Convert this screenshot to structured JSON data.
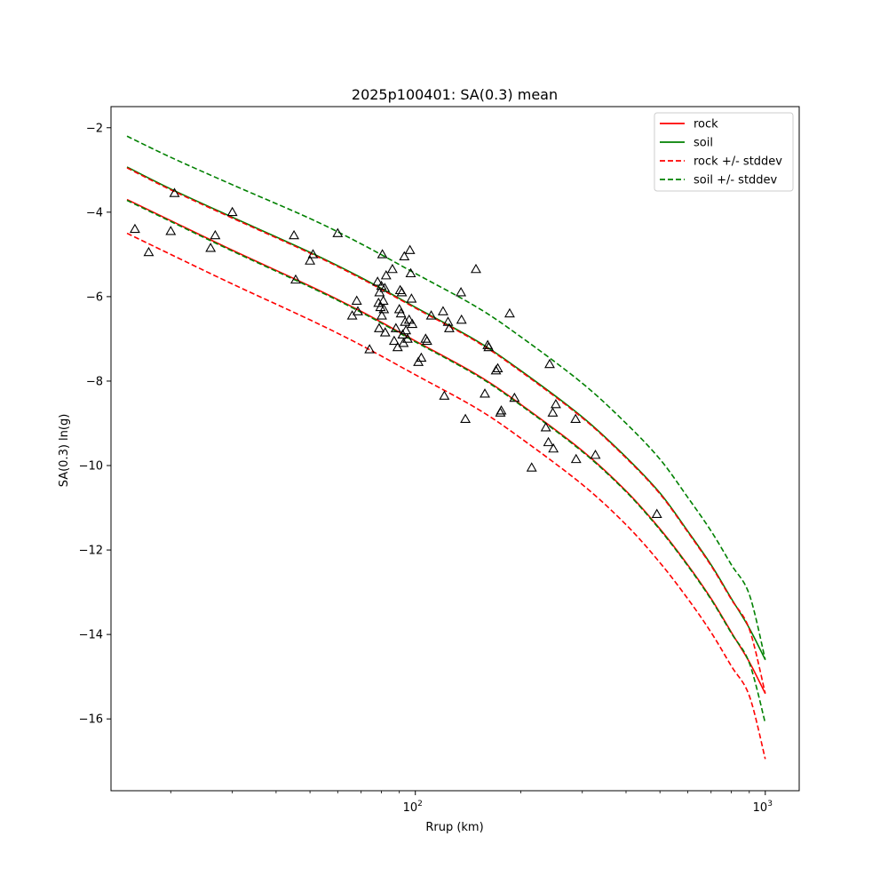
{
  "chart_data": {
    "type": "line",
    "title": "2025p100401: SA(0.3) mean",
    "xlabel": "Rrup (km)",
    "ylabel": "SA(0.3) ln(g)",
    "xscale": "log",
    "xlim": [
      13.5,
      1250
    ],
    "ylim": [
      -17.7,
      -1.5
    ],
    "xticks": [
      {
        "value": 100,
        "base": "10",
        "exp": "2"
      },
      {
        "value": 1000,
        "base": "10",
        "exp": "3"
      }
    ],
    "yticks": [
      -2,
      -4,
      -6,
      -8,
      -10,
      -12,
      -14,
      -16
    ],
    "ytick_labels": [
      "−2",
      "−4",
      "−6",
      "−8",
      "−10",
      "−12",
      "−14",
      "−16"
    ],
    "grid": false,
    "legend_position": "top-right",
    "legend": [
      {
        "label": "rock",
        "color": "#ff0000",
        "style": "solid"
      },
      {
        "label": "soil",
        "color": "#008000",
        "style": "solid"
      },
      {
        "label": "rock +/- stddev",
        "color": "#ff0000",
        "style": "dashed"
      },
      {
        "label": "soil +/- stddev",
        "color": "#008000",
        "style": "dashed"
      }
    ],
    "x": [
      15,
      20,
      30,
      50,
      70,
      100,
      150,
      200,
      300,
      400,
      500,
      600,
      700,
      800,
      900,
      1000
    ],
    "series": [
      {
        "name": "rock",
        "color": "#ff0000",
        "style": "solid",
        "values": [
          -3.7,
          -4.2,
          -4.9,
          -5.75,
          -6.35,
          -7.05,
          -7.85,
          -8.55,
          -9.65,
          -10.6,
          -11.5,
          -12.35,
          -13.15,
          -13.95,
          -14.65,
          -15.4
        ]
      },
      {
        "name": "soil",
        "color": "#008000",
        "style": "solid",
        "values": [
          -2.93,
          -3.45,
          -4.12,
          -4.95,
          -5.55,
          -6.25,
          -7.05,
          -7.75,
          -8.85,
          -9.8,
          -10.65,
          -11.55,
          -12.35,
          -13.15,
          -13.85,
          -14.6
        ]
      },
      {
        "name": "rock - stddev",
        "color": "#ff0000",
        "style": "dashed",
        "values": [
          -4.5,
          -5.0,
          -5.7,
          -6.55,
          -7.15,
          -7.85,
          -8.65,
          -9.35,
          -10.45,
          -11.4,
          -12.3,
          -13.15,
          -13.95,
          -14.75,
          -15.45,
          -16.95
        ]
      },
      {
        "name": "rock + stddev",
        "color": "#ff0000",
        "style": "dashed",
        "values": [
          -2.95,
          -3.47,
          -4.14,
          -4.97,
          -5.57,
          -6.27,
          -7.07,
          -7.77,
          -8.87,
          -9.82,
          -10.67,
          -11.57,
          -12.37,
          -13.17,
          -13.87,
          -15.4
        ]
      },
      {
        "name": "soil - stddev",
        "color": "#008000",
        "style": "dashed",
        "values": [
          -3.72,
          -4.22,
          -4.92,
          -5.77,
          -6.37,
          -7.07,
          -7.87,
          -8.57,
          -9.67,
          -10.62,
          -11.52,
          -12.37,
          -13.17,
          -13.97,
          -14.67,
          -16.1
        ]
      },
      {
        "name": "soil + stddev",
        "color": "#008000",
        "style": "dashed",
        "values": [
          -2.2,
          -2.7,
          -3.35,
          -4.15,
          -4.75,
          -5.45,
          -6.25,
          -6.95,
          -8.05,
          -9.0,
          -9.85,
          -10.75,
          -11.55,
          -12.35,
          -13.05,
          -14.6
        ]
      }
    ],
    "observations": {
      "marker": "triangle",
      "points": [
        [
          15.8,
          -4.4
        ],
        [
          17.3,
          -4.95
        ],
        [
          20,
          -4.45
        ],
        [
          20.5,
          -3.55
        ],
        [
          26,
          -4.85
        ],
        [
          26.8,
          -4.55
        ],
        [
          30,
          -4.0
        ],
        [
          45,
          -4.55
        ],
        [
          45.5,
          -5.6
        ],
        [
          50,
          -5.15
        ],
        [
          51,
          -5.0
        ],
        [
          60,
          -4.5
        ],
        [
          66,
          -6.45
        ],
        [
          68,
          -6.1
        ],
        [
          68.5,
          -6.35
        ],
        [
          74,
          -7.25
        ],
        [
          78,
          -5.65
        ],
        [
          78.5,
          -6.15
        ],
        [
          78.8,
          -6.75
        ],
        [
          79,
          -5.9
        ],
        [
          79.5,
          -6.25
        ],
        [
          80,
          -5.75
        ],
        [
          80.2,
          -6.45
        ],
        [
          80.5,
          -5.0
        ],
        [
          81,
          -6.1
        ],
        [
          81.3,
          -6.3
        ],
        [
          81.8,
          -5.8
        ],
        [
          82,
          -6.85
        ],
        [
          82.5,
          -5.5
        ],
        [
          86,
          -5.35
        ],
        [
          87,
          -7.05
        ],
        [
          88,
          -6.75
        ],
        [
          89,
          -7.2
        ],
        [
          90,
          -6.3
        ],
        [
          90.5,
          -5.85
        ],
        [
          91,
          -6.4
        ],
        [
          91.5,
          -5.9
        ],
        [
          92,
          -6.9
        ],
        [
          92.5,
          -7.1
        ],
        [
          93,
          -5.05
        ],
        [
          93.5,
          -6.6
        ],
        [
          94,
          -6.8
        ],
        [
          95,
          -7.0
        ],
        [
          96,
          -6.55
        ],
        [
          96.5,
          -4.9
        ],
        [
          97,
          -5.45
        ],
        [
          97.5,
          -6.05
        ],
        [
          98,
          -6.65
        ],
        [
          102,
          -7.55
        ],
        [
          104,
          -7.45
        ],
        [
          107,
          -7.0
        ],
        [
          108,
          -7.05
        ],
        [
          111,
          -6.45
        ],
        [
          120,
          -6.35
        ],
        [
          121,
          -8.35
        ],
        [
          124,
          -6.6
        ],
        [
          125,
          -6.75
        ],
        [
          135,
          -5.9
        ],
        [
          135.5,
          -6.55
        ],
        [
          139,
          -8.9
        ],
        [
          149,
          -5.35
        ],
        [
          158,
          -8.3
        ],
        [
          161,
          -7.15
        ],
        [
          162,
          -7.2
        ],
        [
          170,
          -7.75
        ],
        [
          172,
          -7.7
        ],
        [
          175,
          -8.75
        ],
        [
          176,
          -8.7
        ],
        [
          186,
          -6.4
        ],
        [
          192,
          -8.4
        ],
        [
          215,
          -10.05
        ],
        [
          236,
          -9.1
        ],
        [
          240,
          -9.45
        ],
        [
          242,
          -7.6
        ],
        [
          247,
          -8.75
        ],
        [
          248,
          -9.6
        ],
        [
          252,
          -8.55
        ],
        [
          287,
          -8.9
        ],
        [
          288,
          -9.85
        ],
        [
          327,
          -9.75
        ],
        [
          490,
          -11.15
        ]
      ]
    }
  }
}
